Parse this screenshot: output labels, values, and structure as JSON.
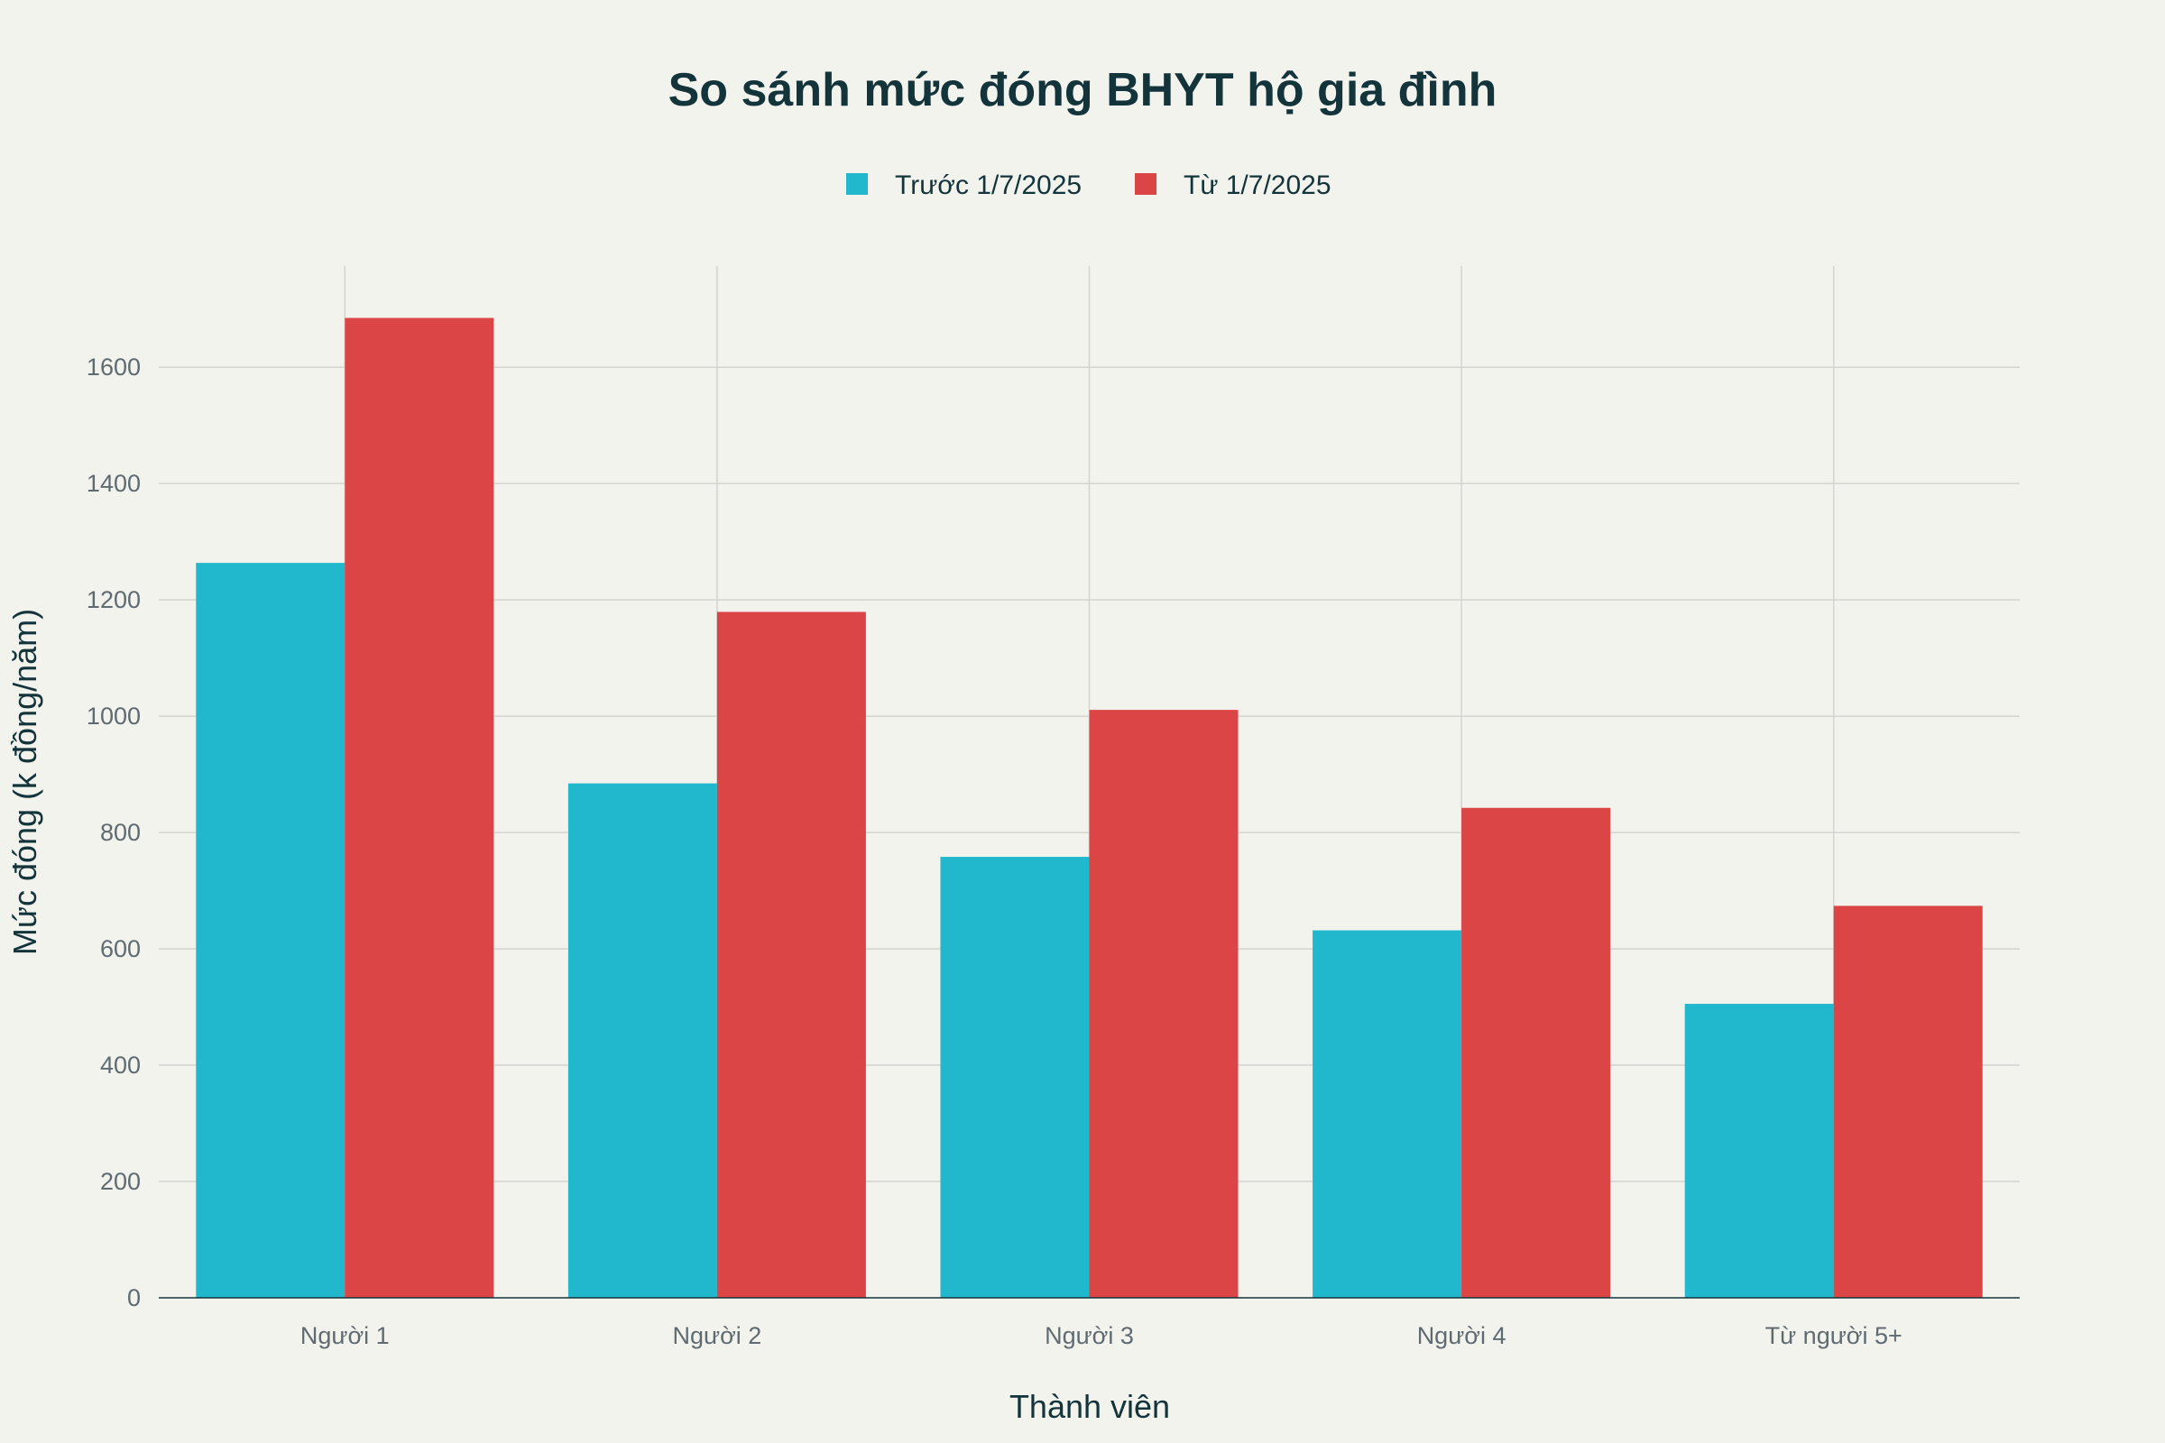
{
  "chart_data": {
    "type": "bar",
    "title": "So sánh mức đóng BHYT hộ gia đình",
    "xlabel": "Thành viên",
    "ylabel": "Mức đóng (k đồng/năm)",
    "categories": [
      "Người 1",
      "Người 2",
      "Người 3",
      "Người 4",
      "Từ người 5+"
    ],
    "series": [
      {
        "name": "Trước 1/7/2025",
        "color": "#21b7cc",
        "values": [
          1263.6,
          884.52,
          758.16,
          631.8,
          505.44
        ]
      },
      {
        "name": "Từ 1/7/2025",
        "color": "#db4546",
        "values": [
          1684.8,
          1179.36,
          1010.88,
          842.4,
          673.92
        ]
      }
    ],
    "ylim": [
      0,
      1774
    ],
    "yticks": [
      0,
      200,
      400,
      600,
      800,
      1000,
      1200,
      1400,
      1600
    ],
    "grid": true,
    "legend_position": "top-center"
  }
}
